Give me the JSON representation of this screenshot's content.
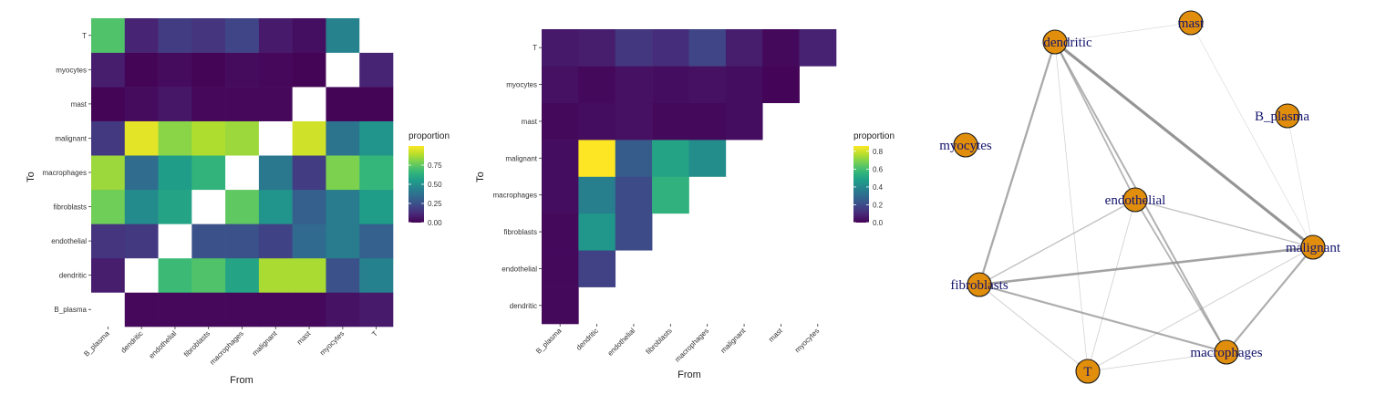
{
  "colors": {
    "viridis": [
      "#440154",
      "#482878",
      "#3e4989",
      "#31688e",
      "#26828e",
      "#1f9e89",
      "#35b779",
      "#6ece58",
      "#b5de2b",
      "#fde725"
    ],
    "node_fill": "#e08e0b",
    "node_stroke": "#1a1a1a",
    "node_label": "#14146e",
    "edge": "#8c8c8c",
    "missing": "#ffffff"
  },
  "chart_data": [
    {
      "type": "heatmap",
      "xlabel": "From",
      "ylabel": "To",
      "x_categories": [
        "B_plasma",
        "dendritic",
        "endothelial",
        "fibroblasts",
        "macrophages",
        "malignant",
        "mast",
        "myocytes",
        "T"
      ],
      "y_categories": [
        "B_plasma",
        "dendritic",
        "endothelial",
        "fibroblasts",
        "macrophages",
        "malignant",
        "mast",
        "myocytes",
        "T"
      ],
      "values": [
        [
          null,
          0.02,
          0.02,
          0.02,
          0.02,
          0.02,
          0.02,
          0.05,
          0.07
        ],
        [
          0.08,
          null,
          0.68,
          0.72,
          0.58,
          0.87,
          0.87,
          0.25,
          0.44
        ],
        [
          0.15,
          0.17,
          null,
          0.25,
          0.25,
          0.2,
          0.34,
          0.42,
          0.31
        ],
        [
          0.78,
          0.48,
          0.58,
          null,
          0.75,
          0.52,
          0.3,
          0.42,
          0.55
        ],
        [
          0.85,
          0.35,
          0.55,
          0.65,
          null,
          0.4,
          0.18,
          0.8,
          0.66
        ],
        [
          0.17,
          0.96,
          0.82,
          0.88,
          0.85,
          null,
          0.93,
          0.38,
          0.52
        ],
        [
          0.01,
          0.03,
          0.06,
          0.02,
          0.02,
          0.02,
          null,
          0.01,
          0.01
        ],
        [
          0.08,
          0.01,
          0.03,
          0.01,
          0.03,
          0.02,
          0.01,
          null,
          0.1
        ],
        [
          0.72,
          0.1,
          0.18,
          0.15,
          0.21,
          0.07,
          0.04,
          0.45,
          null
        ]
      ],
      "legend_title": "proportion",
      "legend_ticks": [
        0.0,
        0.25,
        0.5,
        0.75
      ],
      "legend_tick_labels": [
        "0.00",
        "0.25",
        "0.50",
        "0.75"
      ],
      "color_range": [
        0,
        1
      ],
      "legend_position": "right",
      "grid": false
    },
    {
      "type": "heatmap",
      "xlabel": "From",
      "ylabel": "To",
      "x_categories": [
        "B_plasma",
        "dendritic",
        "endothelial",
        "fibroblasts",
        "macrophages",
        "malignant",
        "mast",
        "myocytes"
      ],
      "y_categories": [
        "dendritic",
        "endothelial",
        "fibroblasts",
        "macrophages",
        "malignant",
        "mast",
        "myocytes",
        "T"
      ],
      "values": [
        [
          0.02,
          null,
          null,
          null,
          null,
          null,
          null,
          null
        ],
        [
          0.02,
          0.17,
          null,
          null,
          null,
          null,
          null,
          null
        ],
        [
          0.02,
          0.45,
          0.2,
          null,
          null,
          null,
          null,
          null
        ],
        [
          0.03,
          0.37,
          0.2,
          0.55,
          null,
          null,
          null,
          null
        ],
        [
          0.03,
          0.86,
          0.25,
          0.5,
          0.42,
          null,
          null,
          null
        ],
        [
          0.02,
          0.03,
          0.04,
          0.02,
          0.02,
          0.03,
          null,
          null
        ],
        [
          0.04,
          0.02,
          0.04,
          0.03,
          0.04,
          0.03,
          0.01,
          null
        ],
        [
          0.06,
          0.07,
          0.14,
          0.11,
          0.18,
          0.07,
          0.02,
          0.08
        ]
      ],
      "legend_title": "proportion",
      "legend_ticks": [
        0.0,
        0.2,
        0.4,
        0.6,
        0.8
      ],
      "legend_tick_labels": [
        "0.0",
        "0.2",
        "0.4",
        "0.6",
        "0.8"
      ],
      "color_range": [
        0,
        0.86
      ],
      "legend_position": "right",
      "grid": false
    },
    {
      "type": "network",
      "nodes": [
        "dendritic",
        "mast",
        "B_plasma",
        "myocytes",
        "endothelial",
        "malignant",
        "fibroblasts",
        "macrophages",
        "T"
      ],
      "edges": [
        {
          "source": "dendritic",
          "target": "malignant",
          "weight": 0.87
        },
        {
          "source": "dendritic",
          "target": "fibroblasts",
          "weight": 0.6
        },
        {
          "source": "dendritic",
          "target": "endothelial",
          "weight": 0.45
        },
        {
          "source": "dendritic",
          "target": "macrophages",
          "weight": 0.5
        },
        {
          "source": "dendritic",
          "target": "T",
          "weight": 0.1
        },
        {
          "source": "dendritic",
          "target": "mast",
          "weight": 0.05
        },
        {
          "source": "fibroblasts",
          "target": "malignant",
          "weight": 0.7
        },
        {
          "source": "fibroblasts",
          "target": "macrophages",
          "weight": 0.55
        },
        {
          "source": "fibroblasts",
          "target": "endothelial",
          "weight": 0.3
        },
        {
          "source": "fibroblasts",
          "target": "T",
          "weight": 0.15
        },
        {
          "source": "malignant",
          "target": "macrophages",
          "weight": 0.55
        },
        {
          "source": "malignant",
          "target": "endothelial",
          "weight": 0.3
        },
        {
          "source": "malignant",
          "target": "T",
          "weight": 0.15
        },
        {
          "source": "macrophages",
          "target": "endothelial",
          "weight": 0.45
        },
        {
          "source": "macrophages",
          "target": "T",
          "weight": 0.12
        },
        {
          "source": "endothelial",
          "target": "T",
          "weight": 0.12
        },
        {
          "source": "mast",
          "target": "malignant",
          "weight": 0.05
        },
        {
          "source": "B_plasma",
          "target": "malignant",
          "weight": 0.05
        }
      ]
    }
  ]
}
